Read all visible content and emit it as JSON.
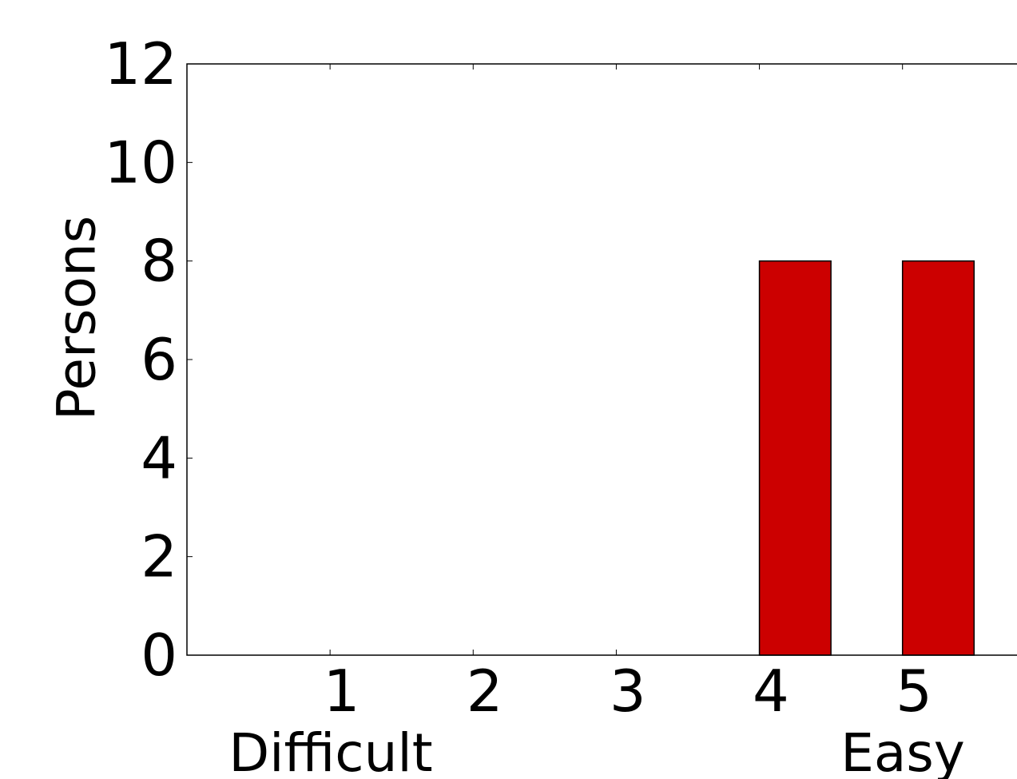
{
  "chart_data": {
    "type": "bar",
    "categories": [
      "1",
      "2",
      "3",
      "4",
      "5"
    ],
    "values": [
      0,
      0,
      0,
      8,
      8
    ],
    "ylabel": "Persons",
    "xlabel_left": "Difficult",
    "xlabel_right": "Easy",
    "ylim": [
      0,
      12
    ],
    "xlim": [
      0,
      5.8
    ],
    "yticks": [
      0,
      2,
      4,
      6,
      8,
      10,
      12
    ],
    "bar_color": "#cc0000",
    "edge_color": "#000000",
    "grid": false
  }
}
